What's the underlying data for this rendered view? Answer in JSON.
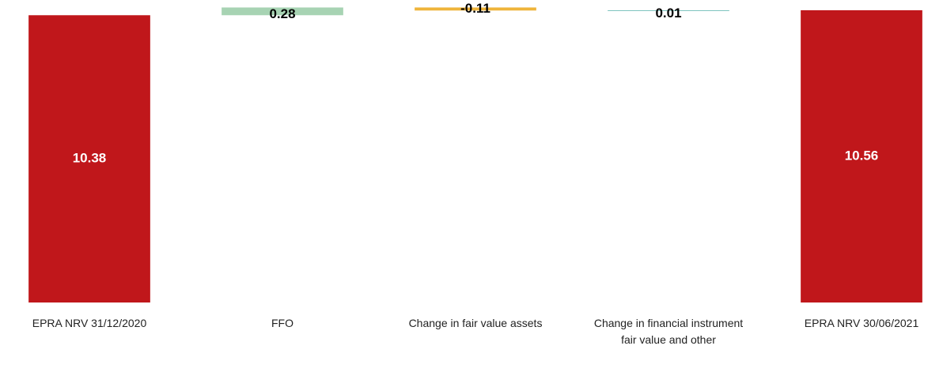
{
  "chart_data": {
    "type": "waterfall",
    "categories": [
      "EPRA NRV 31/12/2020",
      "FFO",
      "Change in fair value assets",
      "Change in financial instrument fair value and other",
      "EPRA NRV 30/06/2021"
    ],
    "values": [
      10.38,
      0.28,
      -0.11,
      0.01,
      10.56
    ],
    "total": [
      true,
      false,
      false,
      false,
      true
    ],
    "colors": [
      "#c0171b",
      "#a7d3b3",
      "#efb43a",
      "#7cc3bd",
      "#c0171b"
    ],
    "ylim": [
      0,
      10.93
    ]
  }
}
